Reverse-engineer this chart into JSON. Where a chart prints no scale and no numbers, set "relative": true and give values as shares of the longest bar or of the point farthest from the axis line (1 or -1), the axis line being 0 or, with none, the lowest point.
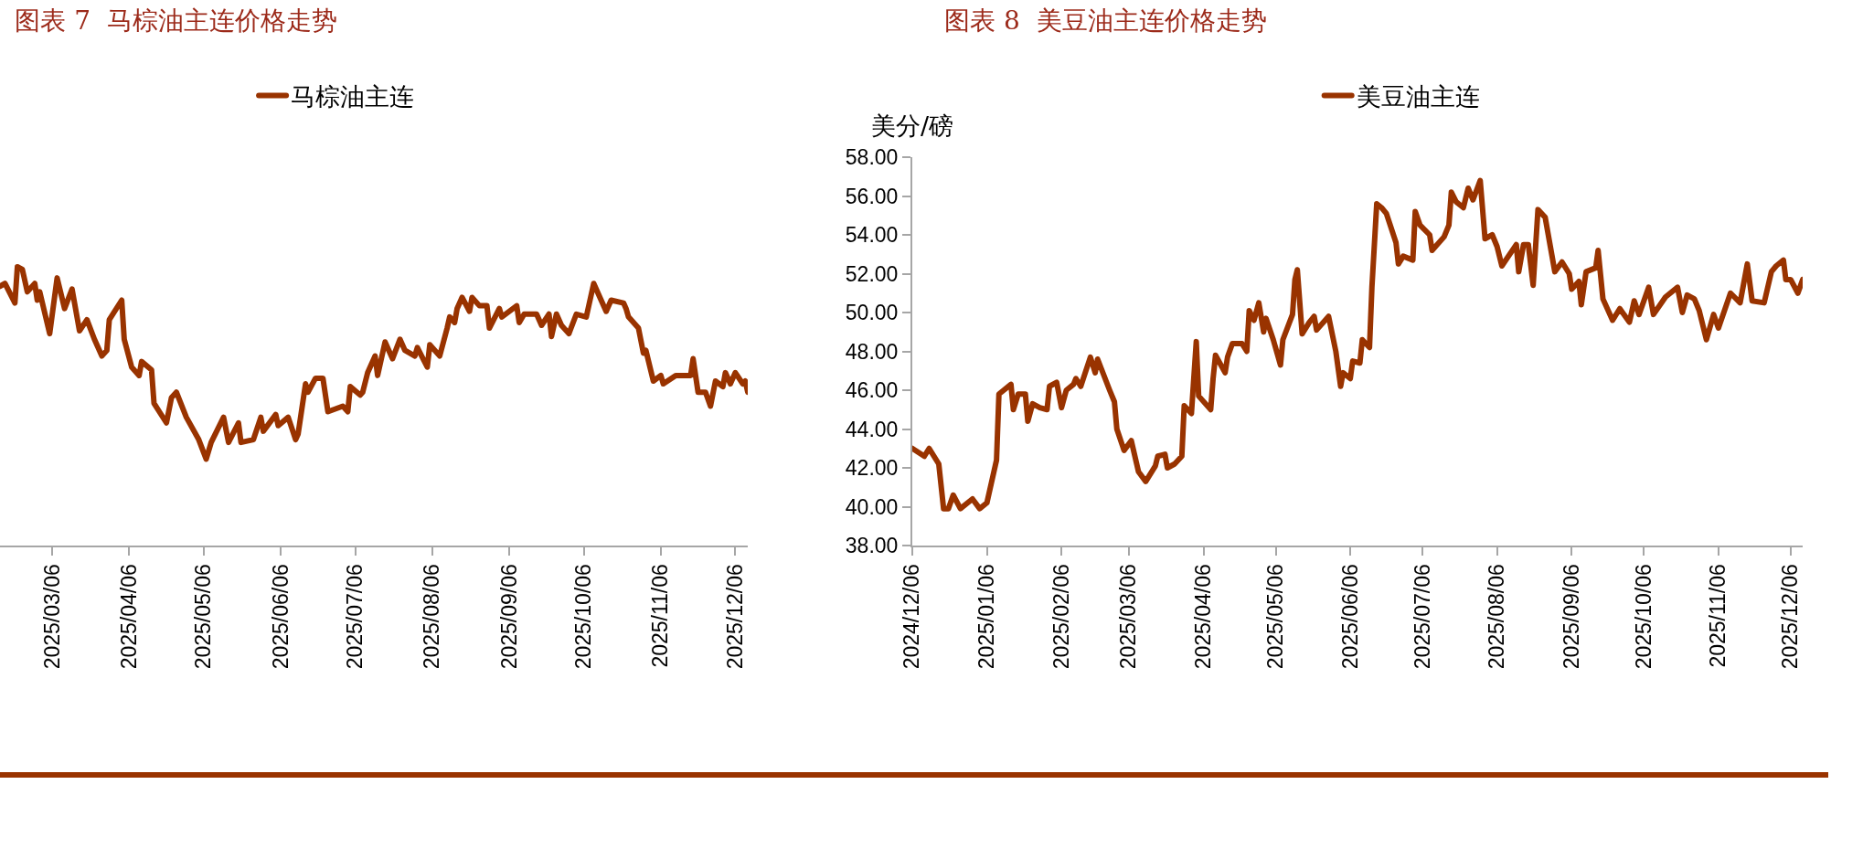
{
  "chart_data": [
    {
      "type": "line",
      "title": "图表 7  马棕油主连价格走势",
      "relative": true,
      "legend": "top",
      "grid": false,
      "marker": "none",
      "line_style": "solid",
      "xlim": [
        "2025-02-13",
        "2025-12-11"
      ],
      "xticks": [
        {
          "value": "2025-03-06",
          "label": "2025/03/06"
        },
        {
          "value": "2025-04-06",
          "label": "2025/04/06"
        },
        {
          "value": "2025-05-06",
          "label": "2025/05/06"
        },
        {
          "value": "2025-06-06",
          "label": "2025/06/06"
        },
        {
          "value": "2025-07-06",
          "label": "2025/07/06"
        },
        {
          "value": "2025-08-06",
          "label": "2025/08/06"
        },
        {
          "value": "2025-09-06",
          "label": "2025/09/06"
        },
        {
          "value": "2025-10-06",
          "label": "2025/10/06"
        },
        {
          "value": "2025-11-06",
          "label": "2025/11/06"
        },
        {
          "value": "2025-12-06",
          "label": "2025/12/06"
        }
      ],
      "x": [
        "2025-02-13",
        "2025-02-15",
        "2025-02-19",
        "2025-02-20",
        "2025-02-22",
        "2025-02-24",
        "2025-02-27",
        "2025-02-28",
        "2025-03-01",
        "2025-03-05",
        "2025-03-08",
        "2025-03-11",
        "2025-03-14",
        "2025-03-17",
        "2025-03-20",
        "2025-03-23",
        "2025-03-26",
        "2025-03-28",
        "2025-03-29",
        "2025-04-03",
        "2025-04-04",
        "2025-04-07",
        "2025-04-10",
        "2025-04-11",
        "2025-04-15",
        "2025-04-16",
        "2025-04-21",
        "2025-04-23",
        "2025-04-25",
        "2025-04-29",
        "2025-05-04",
        "2025-05-07",
        "2025-05-09",
        "2025-05-14",
        "2025-05-16",
        "2025-05-20",
        "2025-05-21",
        "2025-05-26",
        "2025-05-29",
        "2025-05-30",
        "2025-06-04",
        "2025-06-05",
        "2025-06-09",
        "2025-06-12",
        "2025-06-13",
        "2025-06-16",
        "2025-06-17",
        "2025-06-20",
        "2025-06-23",
        "2025-06-25",
        "2025-07-01",
        "2025-07-03",
        "2025-07-04",
        "2025-07-08",
        "2025-07-09",
        "2025-07-11",
        "2025-07-14",
        "2025-07-15",
        "2025-07-18",
        "2025-07-21",
        "2025-07-24",
        "2025-07-26",
        "2025-07-30",
        "2025-07-31",
        "2025-08-04",
        "2025-08-05",
        "2025-08-09",
        "2025-08-12",
        "2025-08-13",
        "2025-08-15",
        "2025-08-16",
        "2025-08-18",
        "2025-08-21",
        "2025-08-22",
        "2025-08-25",
        "2025-08-28",
        "2025-08-29",
        "2025-09-02",
        "2025-09-03",
        "2025-09-09",
        "2025-09-10",
        "2025-09-12",
        "2025-09-17",
        "2025-09-19",
        "2025-09-22",
        "2025-09-23",
        "2025-09-25",
        "2025-09-27",
        "2025-09-30",
        "2025-10-03",
        "2025-10-07",
        "2025-10-08",
        "2025-10-10",
        "2025-10-12",
        "2025-10-15",
        "2025-10-17",
        "2025-10-22",
        "2025-10-23",
        "2025-10-24",
        "2025-10-28",
        "2025-10-30",
        "2025-10-31",
        "2025-11-03",
        "2025-11-06",
        "2025-11-07",
        "2025-11-12",
        "2025-11-18",
        "2025-11-19",
        "2025-11-21",
        "2025-11-24",
        "2025-11-26",
        "2025-11-28",
        "2025-12-01",
        "2025-12-02",
        "2025-12-04",
        "2025-12-06",
        "2025-12-09",
        "2025-12-10",
        "2025-12-11"
      ],
      "series": [
        {
          "name": "马棕油主连",
          "color": "#993300",
          "values": [
            0.93,
            0.94,
            0.87,
            1.0,
            0.99,
            0.91,
            0.94,
            0.88,
            0.91,
            0.76,
            0.96,
            0.85,
            0.92,
            0.77,
            0.81,
            0.74,
            0.68,
            0.7,
            0.81,
            0.88,
            0.74,
            0.64,
            0.61,
            0.66,
            0.63,
            0.51,
            0.44,
            0.53,
            0.55,
            0.46,
            0.38,
            0.31,
            0.37,
            0.46,
            0.37,
            0.44,
            0.37,
            0.38,
            0.46,
            0.41,
            0.47,
            0.43,
            0.46,
            0.38,
            0.4,
            0.58,
            0.55,
            0.6,
            0.6,
            0.48,
            0.5,
            0.48,
            0.57,
            0.54,
            0.55,
            0.62,
            0.68,
            0.61,
            0.73,
            0.67,
            0.74,
            0.7,
            0.68,
            0.71,
            0.64,
            0.72,
            0.68,
            0.78,
            0.82,
            0.8,
            0.85,
            0.89,
            0.84,
            0.89,
            0.86,
            0.86,
            0.78,
            0.85,
            0.82,
            0.86,
            0.8,
            0.83,
            0.83,
            0.79,
            0.83,
            0.75,
            0.83,
            0.79,
            0.76,
            0.83,
            0.82,
            0.86,
            0.94,
            0.9,
            0.84,
            0.88,
            0.87,
            0.85,
            0.82,
            0.78,
            0.69,
            0.7,
            0.59,
            0.61,
            0.58,
            0.61,
            0.61,
            0.67,
            0.55,
            0.55,
            0.5,
            0.59,
            0.57,
            0.62,
            0.58,
            0.62,
            0.58,
            0.59,
            0.55
          ]
        }
      ]
    },
    {
      "type": "line",
      "title": "图表 8  美豆油主连价格走势",
      "ylabel": "美分/磅",
      "legend": "top",
      "grid": false,
      "marker": "none",
      "line_style": "solid",
      "xlim": [
        "2024-12-06",
        "2025-12-11"
      ],
      "xticks": [
        {
          "value": "2024-12-06",
          "label": "2024/12/06"
        },
        {
          "value": "2025-01-06",
          "label": "2025/01/06"
        },
        {
          "value": "2025-02-06",
          "label": "2025/02/06"
        },
        {
          "value": "2025-03-06",
          "label": "2025/03/06"
        },
        {
          "value": "2025-04-06",
          "label": "2025/04/06"
        },
        {
          "value": "2025-05-06",
          "label": "2025/05/06"
        },
        {
          "value": "2025-06-06",
          "label": "2025/06/06"
        },
        {
          "value": "2025-07-06",
          "label": "2025/07/06"
        },
        {
          "value": "2025-08-06",
          "label": "2025/08/06"
        },
        {
          "value": "2025-09-06",
          "label": "2025/09/06"
        },
        {
          "value": "2025-10-06",
          "label": "2025/10/06"
        },
        {
          "value": "2025-11-06",
          "label": "2025/11/06"
        },
        {
          "value": "2025-12-06",
          "label": "2025/12/06"
        }
      ],
      "ylim": [
        38,
        58
      ],
      "yticks": [
        {
          "value": 38,
          "label": "38.00"
        },
        {
          "value": 40,
          "label": "40.00"
        },
        {
          "value": 42,
          "label": "42.00"
        },
        {
          "value": 44,
          "label": "44.00"
        },
        {
          "value": 46,
          "label": "46.00"
        },
        {
          "value": 48,
          "label": "48.00"
        },
        {
          "value": 50,
          "label": "50.00"
        },
        {
          "value": 52,
          "label": "52.00"
        },
        {
          "value": 54,
          "label": "54.00"
        },
        {
          "value": 56,
          "label": "56.00"
        },
        {
          "value": 58,
          "label": "58.00"
        }
      ],
      "x": [
        "2024-12-06",
        "2024-12-11",
        "2024-12-13",
        "2024-12-17",
        "2024-12-19",
        "2024-12-21",
        "2024-12-23",
        "2024-12-26",
        "2024-12-31",
        "2025-01-03",
        "2025-01-06",
        "2025-01-08",
        "2025-01-10",
        "2025-01-11",
        "2025-01-16",
        "2025-01-17",
        "2025-01-19",
        "2025-01-22",
        "2025-01-23",
        "2025-01-25",
        "2025-01-28",
        "2025-01-31",
        "2025-02-01",
        "2025-02-04",
        "2025-02-06",
        "2025-02-08",
        "2025-02-11",
        "2025-02-12",
        "2025-02-14",
        "2025-02-18",
        "2025-02-20",
        "2025-02-21",
        "2025-02-26",
        "2025-02-28",
        "2025-03-01",
        "2025-03-04",
        "2025-03-07",
        "2025-03-10",
        "2025-03-13",
        "2025-03-17",
        "2025-03-18",
        "2025-03-21",
        "2025-03-22",
        "2025-03-25",
        "2025-03-28",
        "2025-03-29",
        "2025-04-01",
        "2025-04-03",
        "2025-04-04",
        "2025-04-09",
        "2025-04-10",
        "2025-04-11",
        "2025-04-15",
        "2025-04-16",
        "2025-04-18",
        "2025-04-22",
        "2025-04-24",
        "2025-04-25",
        "2025-04-27",
        "2025-04-29",
        "2025-05-01",
        "2025-05-02",
        "2025-05-05",
        "2025-05-08",
        "2025-05-09",
        "2025-05-13",
        "2025-05-14",
        "2025-05-15",
        "2025-05-17",
        "2025-05-20",
        "2025-05-22",
        "2025-05-23",
        "2025-05-28",
        "2025-05-31",
        "2025-06-02",
        "2025-06-03",
        "2025-06-06",
        "2025-06-07",
        "2025-06-10",
        "2025-06-11",
        "2025-06-14",
        "2025-06-15",
        "2025-06-17",
        "2025-06-19",
        "2025-06-21",
        "2025-06-25",
        "2025-06-26",
        "2025-06-28",
        "2025-07-02",
        "2025-07-03",
        "2025-07-05",
        "2025-07-09",
        "2025-07-10",
        "2025-07-15",
        "2025-07-17",
        "2025-07-18",
        "2025-07-20",
        "2025-07-23",
        "2025-07-25",
        "2025-07-27",
        "2025-07-30",
        "2025-08-01",
        "2025-08-04",
        "2025-08-06",
        "2025-08-08",
        "2025-08-14",
        "2025-08-15",
        "2025-08-17",
        "2025-08-19",
        "2025-08-21",
        "2025-08-23",
        "2025-08-26",
        "2025-08-28",
        "2025-08-30",
        "2025-09-02",
        "2025-09-05",
        "2025-09-06",
        "2025-09-09",
        "2025-09-10",
        "2025-09-12",
        "2025-09-16",
        "2025-09-17",
        "2025-09-19",
        "2025-09-23",
        "2025-09-26",
        "2025-09-30",
        "2025-10-02",
        "2025-10-04",
        "2025-10-08",
        "2025-10-10",
        "2025-10-15",
        "2025-10-20",
        "2025-10-22",
        "2025-10-24",
        "2025-10-27",
        "2025-10-29",
        "2025-11-01",
        "2025-11-04",
        "2025-11-06",
        "2025-11-11",
        "2025-11-15",
        "2025-11-18",
        "2025-11-20",
        "2025-11-25",
        "2025-11-28",
        "2025-11-30",
        "2025-12-03",
        "2025-12-04",
        "2025-12-06",
        "2025-12-09",
        "2025-12-11"
      ],
      "series": [
        {
          "name": "美豆油主连",
          "color": "#993300",
          "values": [
            43.0,
            42.6,
            43.0,
            42.2,
            39.9,
            39.9,
            40.6,
            39.9,
            40.4,
            39.9,
            40.2,
            41.3,
            42.4,
            45.8,
            46.3,
            45.0,
            45.8,
            45.8,
            44.4,
            45.3,
            45.1,
            45.0,
            46.2,
            46.4,
            45.1,
            46.0,
            46.3,
            46.6,
            46.2,
            47.7,
            46.9,
            47.6,
            46.0,
            45.4,
            44.0,
            42.9,
            43.4,
            41.8,
            41.3,
            42.1,
            42.6,
            42.7,
            42.0,
            42.2,
            42.6,
            45.2,
            44.8,
            48.5,
            45.7,
            45.0,
            46.6,
            47.8,
            46.9,
            47.7,
            48.4,
            48.4,
            48.0,
            50.1,
            49.6,
            50.5,
            49.0,
            49.7,
            48.6,
            47.3,
            48.6,
            49.9,
            51.7,
            52.2,
            48.9,
            49.5,
            49.8,
            49.1,
            49.8,
            48.0,
            46.2,
            46.9,
            46.6,
            47.5,
            47.4,
            48.6,
            48.2,
            51.3,
            55.6,
            55.4,
            55.1,
            53.6,
            52.5,
            52.9,
            52.7,
            55.2,
            54.5,
            54.0,
            53.2,
            53.9,
            54.5,
            56.2,
            55.7,
            55.4,
            56.4,
            55.8,
            56.8,
            53.8,
            54.0,
            53.4,
            52.4,
            53.5,
            52.1,
            53.5,
            53.5,
            51.4,
            55.3,
            54.9,
            53.5,
            52.1,
            52.6,
            52.0,
            51.2,
            51.6,
            50.4,
            52.1,
            52.3,
            53.2,
            50.7,
            49.6,
            50.2,
            49.5,
            50.6,
            49.9,
            51.3,
            49.9,
            50.8,
            51.3,
            50.0,
            50.9,
            50.7,
            50.1,
            48.6,
            49.9,
            49.2,
            51.0,
            50.5,
            52.5,
            50.6,
            50.5,
            52.1,
            52.4,
            52.7,
            51.7,
            51.7,
            51.0,
            51.7
          ]
        }
      ]
    }
  ]
}
